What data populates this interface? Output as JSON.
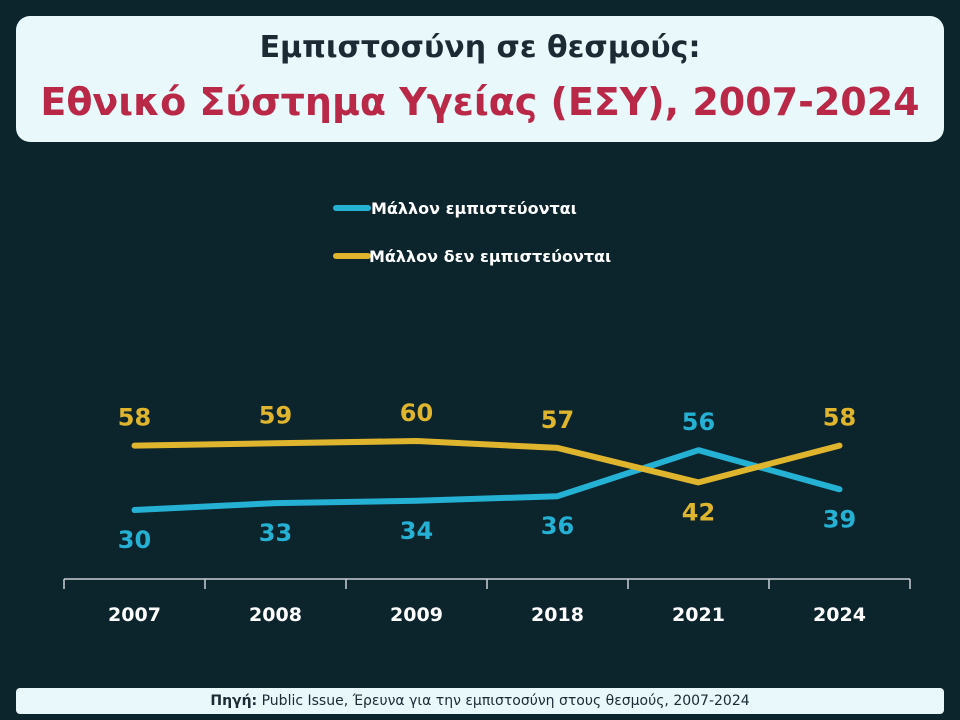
{
  "title": {
    "line1": "Εμπιστοσύνη σε θεσμούς:",
    "line2": "Εθνικό Σύστημα Υγείας (ΕΣΥ), 2007-2024"
  },
  "source": {
    "label": "Πηγή:",
    "text": "Public Issue, Έρευνα για την εμπιστοσύνη στους θεσμούς, 2007-2024"
  },
  "colors": {
    "background": "#0c242c",
    "trust": "#24b1d4",
    "distrust": "#e0b52e",
    "title_accent": "#b92846"
  },
  "chart_data": {
    "type": "line",
    "categories": [
      "2007",
      "2008",
      "2009",
      "2018",
      "2021",
      "2024"
    ],
    "series": [
      {
        "name": "Μάλλον εμπιστεύονται",
        "values": [
          30,
          33,
          34,
          36,
          56,
          39
        ],
        "color": "#24b1d4"
      },
      {
        "name": "Μάλλον δεν εμπιστεύονται",
        "values": [
          58,
          59,
          60,
          57,
          42,
          58
        ],
        "color": "#e0b52e"
      }
    ],
    "legend_position": "top-center",
    "grid": false
  }
}
